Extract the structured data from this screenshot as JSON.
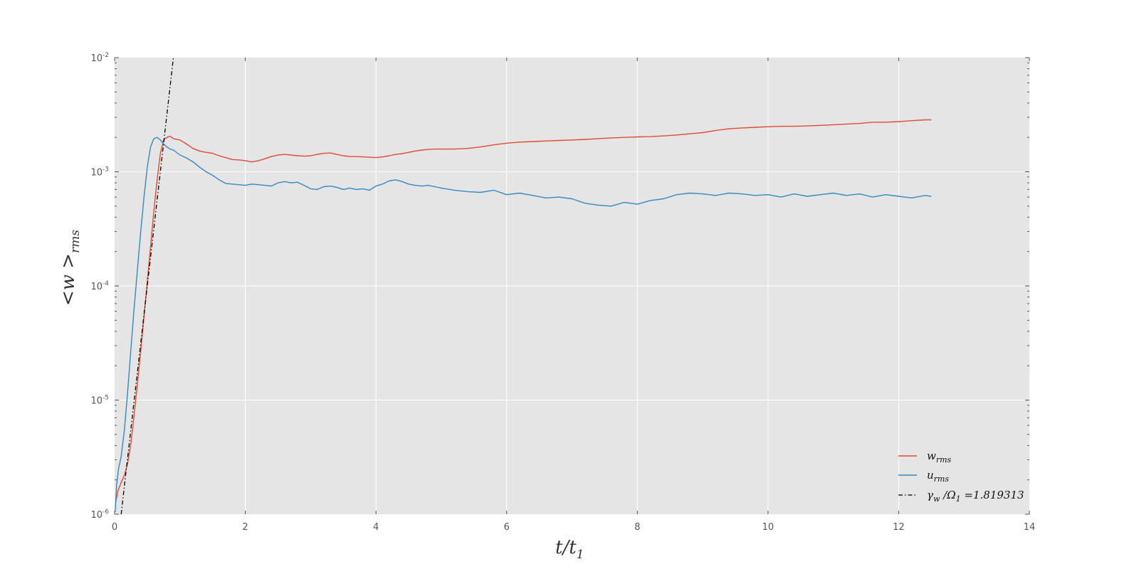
{
  "chart_data": {
    "type": "line",
    "title": "",
    "xlabel": "t/t₁",
    "ylabel": "<w >ᵣₘₛ",
    "xlim": [
      0,
      14
    ],
    "ylim": [
      1e-06,
      0.01
    ],
    "yscale": "log",
    "xticks": [
      0,
      2,
      4,
      6,
      8,
      10,
      12,
      14
    ],
    "yticks": [
      {
        "value": 1e-06,
        "base": "10",
        "exp": "-6"
      },
      {
        "value": 1e-05,
        "base": "10",
        "exp": "-5"
      },
      {
        "value": 0.0001,
        "base": "10",
        "exp": "-4"
      },
      {
        "value": 0.001,
        "base": "10",
        "exp": "-3"
      },
      {
        "value": 0.01,
        "base": "10",
        "exp": "-2"
      }
    ],
    "grid": true,
    "legend_position": "lower-right",
    "series": [
      {
        "name": "w_rms",
        "color": "#e24a33",
        "style": "solid",
        "x": [
          0.02,
          0.05,
          0.1,
          0.15,
          0.2,
          0.25,
          0.3,
          0.35,
          0.4,
          0.45,
          0.5,
          0.55,
          0.6,
          0.65,
          0.7,
          0.75,
          0.8,
          0.85,
          0.9,
          1.0,
          1.1,
          1.2,
          1.3,
          1.4,
          1.5,
          1.6,
          1.7,
          1.8,
          1.9,
          2.0,
          2.1,
          2.2,
          2.3,
          2.4,
          2.5,
          2.6,
          2.7,
          2.8,
          2.9,
          3.0,
          3.1,
          3.2,
          3.3,
          3.4,
          3.5,
          3.6,
          3.7,
          3.8,
          3.9,
          4.0,
          4.1,
          4.2,
          4.3,
          4.4,
          4.5,
          4.6,
          4.7,
          4.8,
          4.9,
          5.0,
          5.2,
          5.4,
          5.6,
          5.8,
          6.0,
          6.2,
          6.4,
          6.6,
          6.8,
          7.0,
          7.2,
          7.4,
          7.6,
          7.8,
          8.0,
          8.2,
          8.4,
          8.6,
          8.8,
          9.0,
          9.2,
          9.4,
          9.6,
          9.8,
          10.0,
          10.2,
          10.4,
          10.6,
          10.8,
          11.0,
          11.2,
          11.4,
          11.6,
          11.8,
          12.0,
          12.2,
          12.4,
          12.5
        ],
        "values": [
          1.3e-06,
          1.6e-06,
          1.9e-06,
          2.2e-06,
          2.8e-06,
          4.2e-06,
          7.5e-06,
          1.4e-05,
          2.7e-05,
          5.4e-05,
          0.00011,
          0.00022,
          0.00045,
          0.00085,
          0.00145,
          0.0019,
          0.002,
          0.00205,
          0.00195,
          0.0019,
          0.00175,
          0.0016,
          0.00152,
          0.00148,
          0.00145,
          0.00138,
          0.00133,
          0.00128,
          0.00127,
          0.00125,
          0.00122,
          0.00125,
          0.0013,
          0.00136,
          0.0014,
          0.00142,
          0.0014,
          0.00138,
          0.00137,
          0.00138,
          0.00142,
          0.00145,
          0.00146,
          0.00142,
          0.00138,
          0.00136,
          0.00136,
          0.00135,
          0.00134,
          0.00133,
          0.00135,
          0.00138,
          0.00142,
          0.00144,
          0.00148,
          0.00152,
          0.00155,
          0.00157,
          0.00158,
          0.00158,
          0.00158,
          0.0016,
          0.00165,
          0.00172,
          0.00178,
          0.00182,
          0.00184,
          0.00186,
          0.00188,
          0.0019,
          0.00192,
          0.00195,
          0.00198,
          0.002,
          0.00202,
          0.00203,
          0.00206,
          0.0021,
          0.00215,
          0.0022,
          0.0023,
          0.00238,
          0.00242,
          0.00245,
          0.00248,
          0.0025,
          0.0025,
          0.00252,
          0.00255,
          0.00258,
          0.00262,
          0.00265,
          0.00272,
          0.00272,
          0.00275,
          0.0028,
          0.00285,
          0.00285
        ]
      },
      {
        "name": "u_rms",
        "color": "#348abd",
        "style": "solid",
        "x": [
          0.01,
          0.03,
          0.06,
          0.1,
          0.15,
          0.2,
          0.25,
          0.3,
          0.35,
          0.4,
          0.45,
          0.5,
          0.55,
          0.6,
          0.65,
          0.7,
          0.75,
          0.8,
          0.85,
          0.9,
          1.0,
          1.1,
          1.2,
          1.3,
          1.4,
          1.5,
          1.6,
          1.7,
          1.8,
          1.9,
          2.0,
          2.1,
          2.2,
          2.3,
          2.4,
          2.5,
          2.6,
          2.7,
          2.8,
          2.9,
          3.0,
          3.1,
          3.2,
          3.3,
          3.4,
          3.5,
          3.6,
          3.7,
          3.8,
          3.9,
          4.0,
          4.1,
          4.2,
          4.3,
          4.4,
          4.5,
          4.6,
          4.7,
          4.8,
          4.9,
          5.0,
          5.2,
          5.4,
          5.6,
          5.8,
          6.0,
          6.2,
          6.4,
          6.6,
          6.8,
          7.0,
          7.2,
          7.4,
          7.6,
          7.8,
          8.0,
          8.2,
          8.4,
          8.6,
          8.8,
          9.0,
          9.2,
          9.4,
          9.6,
          9.8,
          10.0,
          10.2,
          10.4,
          10.6,
          10.8,
          11.0,
          11.2,
          11.4,
          11.6,
          11.8,
          12.0,
          12.2,
          12.4,
          12.5
        ],
        "values": [
          1.05e-06,
          1.8e-06,
          2.5e-06,
          3.2e-06,
          5.5e-06,
          1.2e-05,
          2.8e-05,
          6.5e-05,
          0.00014,
          0.0003,
          0.0006,
          0.0011,
          0.00165,
          0.00195,
          0.002,
          0.0019,
          0.00175,
          0.00165,
          0.00158,
          0.00155,
          0.0014,
          0.00132,
          0.00122,
          0.0011,
          0.001,
          0.00093,
          0.00085,
          0.00079,
          0.00078,
          0.00077,
          0.00076,
          0.00078,
          0.00077,
          0.00076,
          0.00075,
          0.0008,
          0.00082,
          0.0008,
          0.00081,
          0.00076,
          0.00071,
          0.0007,
          0.00074,
          0.00075,
          0.00073,
          0.0007,
          0.00072,
          0.0007,
          0.00071,
          0.00069,
          0.00075,
          0.00078,
          0.00083,
          0.00085,
          0.00082,
          0.00078,
          0.00076,
          0.00075,
          0.00076,
          0.00074,
          0.00072,
          0.00069,
          0.00067,
          0.00066,
          0.00069,
          0.00063,
          0.00065,
          0.00062,
          0.00059,
          0.0006,
          0.00058,
          0.00053,
          0.00051,
          0.0005,
          0.00054,
          0.00052,
          0.00056,
          0.00058,
          0.00063,
          0.00065,
          0.00064,
          0.00062,
          0.00065,
          0.00064,
          0.00062,
          0.00063,
          0.0006,
          0.00064,
          0.00061,
          0.00063,
          0.00065,
          0.00062,
          0.00064,
          0.0006,
          0.00063,
          0.00061,
          0.00059,
          0.00062,
          0.00061
        ]
      },
      {
        "name": "γ_w /Ω₁ =1.819313",
        "color": "#000000",
        "style": "dashdot",
        "x": [
          0.1,
          0.9
        ],
        "values": [
          1e-06,
          0.01
        ]
      }
    ]
  },
  "legend": {
    "items": [
      {
        "main": "w",
        "sub": "rms",
        "color": "#e24a33",
        "style": "solid"
      },
      {
        "main": "u",
        "sub": "rms",
        "color": "#348abd",
        "style": "solid"
      },
      {
        "main": "γ",
        "sub": "w",
        "rest": " /Ω",
        "sub2": "1",
        "tail": " =1.819313",
        "color": "#000000",
        "style": "dashdot"
      }
    ]
  },
  "axis_labels": {
    "x_main": "t/t",
    "x_sub": "1",
    "y_main": "<w >",
    "y_sub": "rms"
  }
}
